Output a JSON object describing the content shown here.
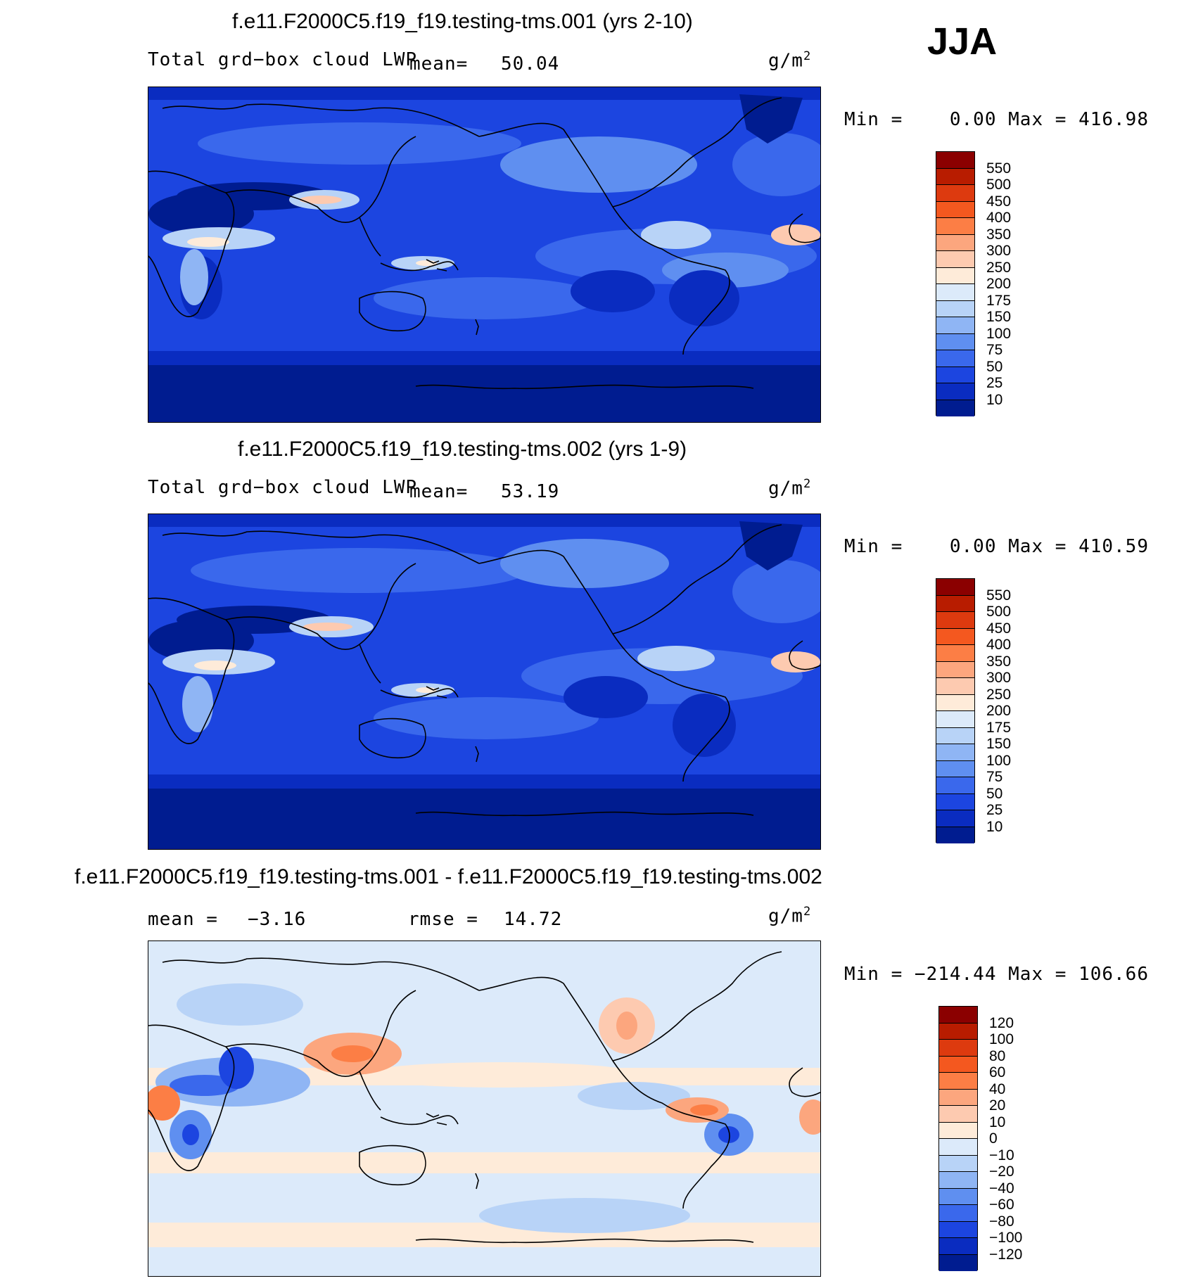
{
  "season": "JJA",
  "panels": [
    {
      "title": "f.e11.F2000C5.f19_f19.testing-tms.001 (yrs 2-10)",
      "variable": "Total grd−box cloud LWP",
      "stat_label": "mean=",
      "stat_value": "50.04",
      "units": "g/m",
      "units_exp": "2",
      "minmax": "Min =    0.00 Max = 416.98",
      "colorbar": {
        "ticks": [
          "550",
          "500",
          "450",
          "400",
          "350",
          "300",
          "250",
          "200",
          "175",
          "150",
          "100",
          "75",
          "50",
          "25",
          "10"
        ],
        "colors": [
          "#8b0000",
          "#b81c00",
          "#dd3a0f",
          "#f4581f",
          "#fc7e45",
          "#fca67e",
          "#fdcab0",
          "#feebd9",
          "#dceafa",
          "#b8d3f7",
          "#8fb5f4",
          "#5f8ff0",
          "#3a68ec",
          "#1c45e0",
          "#0a2cc0",
          "#001c90"
        ]
      }
    },
    {
      "title": "f.e11.F2000C5.f19_f19.testing-tms.002 (yrs 1-9)",
      "variable": "Total grd−box cloud LWP",
      "stat_label": "mean=",
      "stat_value": "53.19",
      "units": "g/m",
      "units_exp": "2",
      "minmax": "Min =    0.00 Max = 410.59",
      "colorbar": {
        "ticks": [
          "550",
          "500",
          "450",
          "400",
          "350",
          "300",
          "250",
          "200",
          "175",
          "150",
          "100",
          "75",
          "50",
          "25",
          "10"
        ],
        "colors": [
          "#8b0000",
          "#b81c00",
          "#dd3a0f",
          "#f4581f",
          "#fc7e45",
          "#fca67e",
          "#fdcab0",
          "#feebd9",
          "#dceafa",
          "#b8d3f7",
          "#8fb5f4",
          "#5f8ff0",
          "#3a68ec",
          "#1c45e0",
          "#0a2cc0",
          "#001c90"
        ]
      }
    },
    {
      "title": "f.e11.F2000C5.f19_f19.testing-tms.001 - f.e11.F2000C5.f19_f19.testing-tms.002",
      "mean_label": "mean =",
      "mean_value": "−3.16",
      "rmse_label": "rmse =",
      "rmse_value": "14.72",
      "units": "g/m",
      "units_exp": "2",
      "minmax": "Min = −214.44 Max = 106.66",
      "colorbar": {
        "ticks": [
          "120",
          "100",
          "80",
          "60",
          "40",
          "20",
          "10",
          "0",
          "−10",
          "−20",
          "−40",
          "−60",
          "−80",
          "−100",
          "−120"
        ],
        "colors": [
          "#8b0000",
          "#b81c00",
          "#dd3a0f",
          "#f4581f",
          "#fc7e45",
          "#fca67e",
          "#fdcab0",
          "#feebd9",
          "#dceafa",
          "#b8d3f7",
          "#8fb5f4",
          "#5f8ff0",
          "#3a68ec",
          "#1c45e0",
          "#0a2cc0",
          "#001c90"
        ]
      }
    }
  ]
}
